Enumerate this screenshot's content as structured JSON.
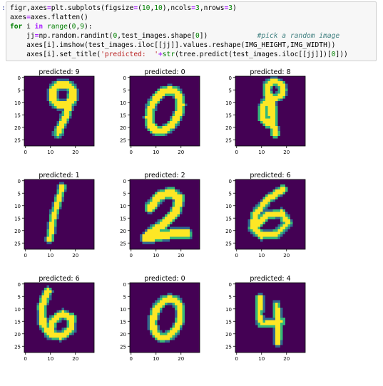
{
  "cell": {
    "prompt": ":",
    "lines": [
      [
        {
          "t": "figr",
          "c": "n"
        },
        {
          "t": ",",
          "c": "n"
        },
        {
          "t": "axes",
          "c": "n"
        },
        {
          "t": "=",
          "c": "op"
        },
        {
          "t": "plt",
          "c": "n"
        },
        {
          "t": ".",
          "c": "n"
        },
        {
          "t": "subplots",
          "c": "n"
        },
        {
          "t": "(",
          "c": "n"
        },
        {
          "t": "figsize",
          "c": "n"
        },
        {
          "t": "=",
          "c": "op"
        },
        {
          "t": "(",
          "c": "n"
        },
        {
          "t": "10",
          "c": "num"
        },
        {
          "t": ",",
          "c": "n"
        },
        {
          "t": "10",
          "c": "num"
        },
        {
          "t": "),",
          "c": "n"
        },
        {
          "t": "ncols",
          "c": "n"
        },
        {
          "t": "=",
          "c": "op"
        },
        {
          "t": "3",
          "c": "num"
        },
        {
          "t": ",",
          "c": "n"
        },
        {
          "t": "nrows",
          "c": "n"
        },
        {
          "t": "=",
          "c": "op"
        },
        {
          "t": "3",
          "c": "num"
        },
        {
          "t": ")",
          "c": "n"
        }
      ],
      [
        {
          "t": "axes",
          "c": "n"
        },
        {
          "t": "=",
          "c": "op"
        },
        {
          "t": "axes",
          "c": "n"
        },
        {
          "t": ".",
          "c": "n"
        },
        {
          "t": "flatten",
          "c": "n"
        },
        {
          "t": "()",
          "c": "n"
        }
      ],
      [
        {
          "t": "for",
          "c": "kw"
        },
        {
          "t": " i ",
          "c": "n"
        },
        {
          "t": "in",
          "c": "op"
        },
        {
          "t": " ",
          "c": "n"
        },
        {
          "t": "range",
          "c": "bi"
        },
        {
          "t": "(",
          "c": "n"
        },
        {
          "t": "0",
          "c": "num"
        },
        {
          "t": ",",
          "c": "n"
        },
        {
          "t": "9",
          "c": "num"
        },
        {
          "t": "):",
          "c": "n"
        }
      ],
      [
        {
          "t": "    jj",
          "c": "n"
        },
        {
          "t": "=",
          "c": "op"
        },
        {
          "t": "np",
          "c": "n"
        },
        {
          "t": ".",
          "c": "n"
        },
        {
          "t": "random",
          "c": "n"
        },
        {
          "t": ".",
          "c": "n"
        },
        {
          "t": "randint",
          "c": "n"
        },
        {
          "t": "(",
          "c": "n"
        },
        {
          "t": "0",
          "c": "num"
        },
        {
          "t": ",",
          "c": "n"
        },
        {
          "t": "test_images",
          "c": "n"
        },
        {
          "t": ".",
          "c": "n"
        },
        {
          "t": "shape",
          "c": "n"
        },
        {
          "t": "[",
          "c": "n"
        },
        {
          "t": "0",
          "c": "num"
        },
        {
          "t": "])",
          "c": "n"
        },
        {
          "t": "            ",
          "c": "n"
        },
        {
          "t": "#pick a random image",
          "c": "cmt"
        }
      ],
      [
        {
          "t": "    axes",
          "c": "n"
        },
        {
          "t": "[",
          "c": "n"
        },
        {
          "t": "i",
          "c": "n"
        },
        {
          "t": "].",
          "c": "n"
        },
        {
          "t": "imshow",
          "c": "n"
        },
        {
          "t": "(",
          "c": "n"
        },
        {
          "t": "test_images",
          "c": "n"
        },
        {
          "t": ".",
          "c": "n"
        },
        {
          "t": "iloc",
          "c": "n"
        },
        {
          "t": "[[",
          "c": "n"
        },
        {
          "t": "jj",
          "c": "n"
        },
        {
          "t": "]].",
          "c": "n"
        },
        {
          "t": "values",
          "c": "n"
        },
        {
          "t": ".",
          "c": "n"
        },
        {
          "t": "reshape",
          "c": "n"
        },
        {
          "t": "(",
          "c": "n"
        },
        {
          "t": "IMG_HEIGHT",
          "c": "n"
        },
        {
          "t": ",",
          "c": "n"
        },
        {
          "t": "IMG_WIDTH",
          "c": "n"
        },
        {
          "t": "))",
          "c": "n"
        }
      ],
      [
        {
          "t": "    axes",
          "c": "n"
        },
        {
          "t": "[",
          "c": "n"
        },
        {
          "t": "i",
          "c": "n"
        },
        {
          "t": "].",
          "c": "n"
        },
        {
          "t": "set_title",
          "c": "n"
        },
        {
          "t": "(",
          "c": "n"
        },
        {
          "t": "'predicted:  '",
          "c": "str"
        },
        {
          "t": "+",
          "c": "op"
        },
        {
          "t": "str",
          "c": "bi"
        },
        {
          "t": "(",
          "c": "n"
        },
        {
          "t": "tree",
          "c": "n"
        },
        {
          "t": ".",
          "c": "n"
        },
        {
          "t": "predict",
          "c": "n"
        },
        {
          "t": "(",
          "c": "n"
        },
        {
          "t": "test_images",
          "c": "n"
        },
        {
          "t": ".",
          "c": "n"
        },
        {
          "t": "iloc",
          "c": "n"
        },
        {
          "t": "[[",
          "c": "n"
        },
        {
          "t": "jj",
          "c": "n"
        },
        {
          "t": "]])[",
          "c": "n"
        },
        {
          "t": "0",
          "c": "num"
        },
        {
          "t": "]))",
          "c": "n"
        }
      ]
    ]
  },
  "colors": {
    "background": "#440154",
    "foreground": "#fde725",
    "edge_a": "#35b779",
    "edge_b": "#31688e"
  },
  "subplots": [
    {
      "title": "predicted: 9",
      "digit": "9"
    },
    {
      "title": "predicted: 0",
      "digit": "0"
    },
    {
      "title": "predicted: 8",
      "digit": "8"
    },
    {
      "title": "predicted: 1",
      "digit": "1"
    },
    {
      "title": "predicted: 2",
      "digit": "2"
    },
    {
      "title": "predicted: 6",
      "digit": "6"
    },
    {
      "title": "predicted: 6",
      "digit": "6"
    },
    {
      "title": "predicted: 0",
      "digit": "0"
    },
    {
      "title": "predicted: 4",
      "digit": "4"
    }
  ],
  "axes": {
    "y_ticks": [
      "0",
      "5",
      "10",
      "15",
      "20",
      "25"
    ],
    "x_ticks": [
      "0",
      "10",
      "20"
    ]
  }
}
